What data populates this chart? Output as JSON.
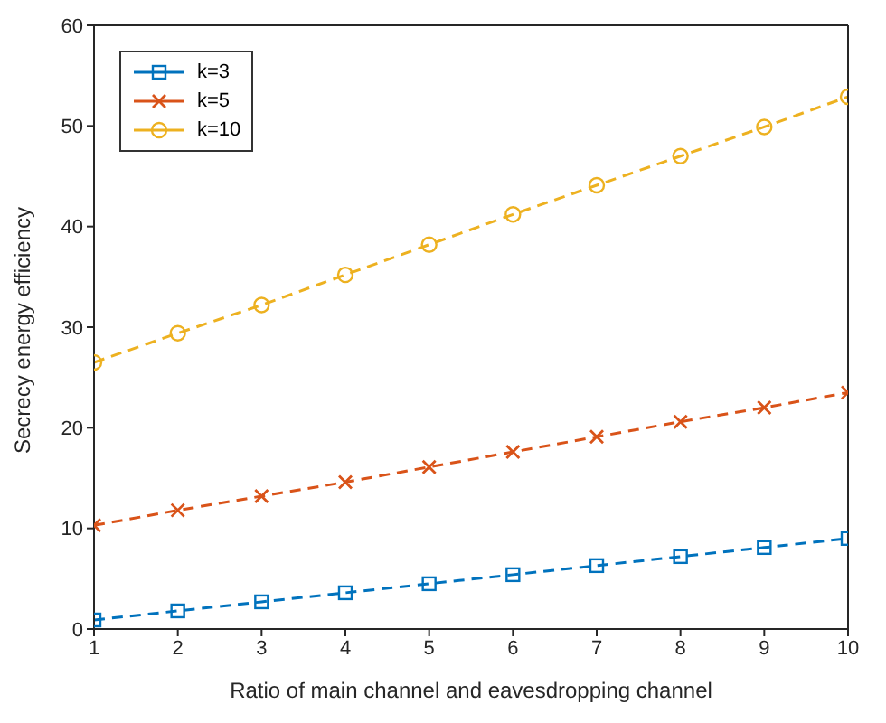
{
  "chart_data": {
    "type": "line",
    "xlabel": "Ratio of main channel and eavesdropping channel",
    "ylabel": "Secrecy energy efficiency",
    "x": [
      1,
      2,
      3,
      4,
      5,
      6,
      7,
      8,
      9,
      10
    ],
    "series": [
      {
        "name": "k=3",
        "color": "#0072bd",
        "marker": "square",
        "values": [
          0.9,
          1.8,
          2.7,
          3.6,
          4.5,
          5.4,
          6.3,
          7.2,
          8.1,
          9.0
        ]
      },
      {
        "name": "k=5",
        "color": "#d95319",
        "marker": "cross",
        "values": [
          10.3,
          11.8,
          13.2,
          14.6,
          16.1,
          17.6,
          19.1,
          20.6,
          22.0,
          23.5
        ]
      },
      {
        "name": "k=10",
        "color": "#edb120",
        "marker": "circle",
        "values": [
          26.5,
          29.4,
          32.2,
          35.2,
          38.2,
          41.2,
          44.1,
          47.0,
          49.9,
          52.9
        ]
      }
    ],
    "xlim": [
      1,
      10
    ],
    "xticks": [
      1,
      2,
      3,
      4,
      5,
      6,
      7,
      8,
      9,
      10
    ],
    "ylim": [
      0,
      60
    ],
    "yticks": [
      0,
      10,
      20,
      30,
      40,
      50,
      60
    ],
    "grid": false,
    "legend": "top left",
    "line_style": "dashed"
  }
}
